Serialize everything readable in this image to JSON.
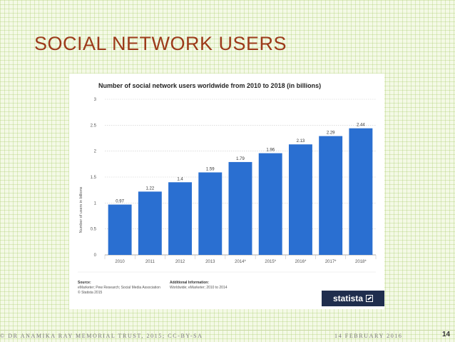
{
  "slide": {
    "title": "SOCIAL NETWORK USERS",
    "footer_left": "© DR ANAMIKA RAY MEMORIAL TRUST, 2015; CC-BY-SA",
    "footer_date": "14 FEBRUARY 2016",
    "page_number": "14"
  },
  "chart_data": {
    "type": "bar",
    "title": "Number of social network users worldwide from 2010 to 2018 (in billions)",
    "ylabel": "Number of users in billions",
    "xlabel": "",
    "categories": [
      "2010",
      "2011",
      "2012",
      "2013",
      "2014*",
      "2015*",
      "2016*",
      "2017*",
      "2018*"
    ],
    "values": [
      0.97,
      1.22,
      1.4,
      1.59,
      1.79,
      1.96,
      2.13,
      2.29,
      2.44
    ],
    "value_labels": [
      "0.97",
      "1.22",
      "1.4",
      "1.59",
      "1.79",
      "1.96",
      "2.13",
      "2.29",
      "2.44"
    ],
    "ylim": [
      0,
      3
    ],
    "yticks": [
      "0",
      "0.5",
      "1",
      "1.5",
      "2",
      "2.5",
      "3"
    ],
    "grid": true,
    "bar_color": "#2a6fd1"
  },
  "chart_footer": {
    "source_heading": "Source:",
    "source_lines": [
      "eMarketer; Pew Research; Social Media Association",
      "© Statista 2015"
    ],
    "info_heading": "Additional Information:",
    "info_lines": [
      "Worldwide; eMarketer; 2010 to 2014"
    ],
    "logo_text": "statista"
  },
  "icons": {
    "logo_mark": "statista-logo-icon"
  }
}
